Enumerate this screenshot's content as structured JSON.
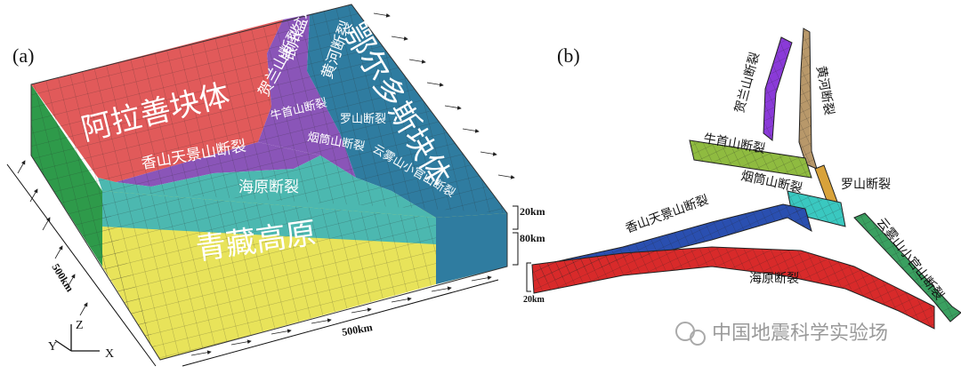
{
  "panel_a": {
    "label": "(a)",
    "blocks": {
      "alxa": "阿拉善块体",
      "ordos": "鄂尔多斯块体",
      "tibet": "青藏高原",
      "yinchuan": "银川盆地"
    },
    "faults": {
      "helanshan": "贺兰山断裂",
      "huanghe": "黄河断裂",
      "niushoushan": "牛首山断裂",
      "luoshan": "罗山断裂",
      "yantongshan": "烟筒山断裂",
      "xiangshan": "香山天景山断裂",
      "haiyuan": "海原断裂",
      "yunwushan": "云雾山小官山断裂"
    },
    "depth_upper": "20km",
    "depth_lower": "80km",
    "width_left": "500km",
    "width_front": "500km",
    "axes": {
      "z": "Z",
      "y": "Y",
      "x": "X"
    }
  },
  "panel_b": {
    "label": "(b)",
    "faults": {
      "helanshan": "贺兰山断裂",
      "huanghe": "黄河断裂",
      "niushoushan": "牛首山断裂",
      "luoshan": "罗山断裂",
      "yantongshan": "烟筒山断裂",
      "xiangshan": "香山天景山断裂",
      "haiyuan": "海原断裂",
      "yunwushan": "云雾山小官山断裂"
    },
    "depth": "20km"
  },
  "watermark": "中国地震科学实验场"
}
